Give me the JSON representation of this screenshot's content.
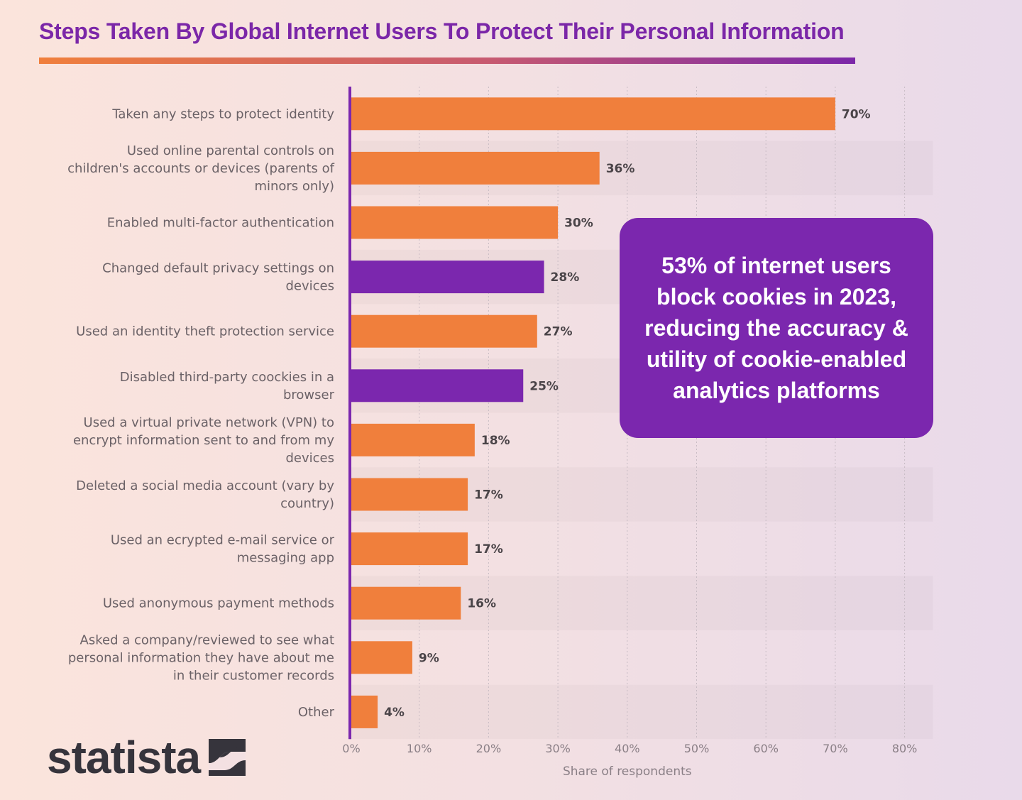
{
  "title": "Steps Taken By Global Internet Users To Protect Their Personal Information",
  "callout": "53% of internet users block cookies in 2023, reducing the accuracy & utility of cookie-enabled analytics platforms",
  "logo": "statista",
  "colors": {
    "bar": "#f07f3c",
    "highlight": "#7b27ae",
    "title": "#7b27a8"
  },
  "chart_data": {
    "type": "bar",
    "orientation": "horizontal",
    "title": "Steps Taken By Global Internet Users To Protect Their Personal Information",
    "xlabel": "Share of respondents",
    "ylabel": "",
    "xlim": [
      0,
      80
    ],
    "xticks": [
      "0%",
      "10%",
      "20%",
      "30%",
      "40%",
      "50%",
      "60%",
      "70%",
      "80%"
    ],
    "grid": true,
    "categories": [
      [
        "Taken any steps to protect identity"
      ],
      [
        "Used online parental controls on",
        "children's accounts or devices (parents of",
        "minors only)"
      ],
      [
        "Enabled multi-factor authentication"
      ],
      [
        "Changed default privacy settings on",
        "devices"
      ],
      [
        "Used an identity theft protection service"
      ],
      [
        "Disabled third-party coockies in a",
        "browser"
      ],
      [
        "Used a virtual private network (VPN) to",
        "encrypt information sent to and from my",
        "devices"
      ],
      [
        "Deleted a social media account (vary by",
        "country)"
      ],
      [
        "Used an ecrypted e-mail service or",
        "messaging app"
      ],
      [
        "Used anonymous payment methods"
      ],
      [
        "Asked a company/reviewed to see what",
        "personal information they have about me",
        "in their customer records"
      ],
      [
        "Other"
      ]
    ],
    "values": [
      70,
      36,
      30,
      28,
      27,
      25,
      18,
      17,
      17,
      16,
      9,
      4
    ],
    "value_labels": [
      "70%",
      "36%",
      "30%",
      "28%",
      "27%",
      "25%",
      "18%",
      "17%",
      "17%",
      "16%",
      "9%",
      "4%"
    ],
    "highlighted": [
      false,
      false,
      false,
      true,
      false,
      true,
      false,
      false,
      false,
      false,
      false,
      false
    ]
  }
}
